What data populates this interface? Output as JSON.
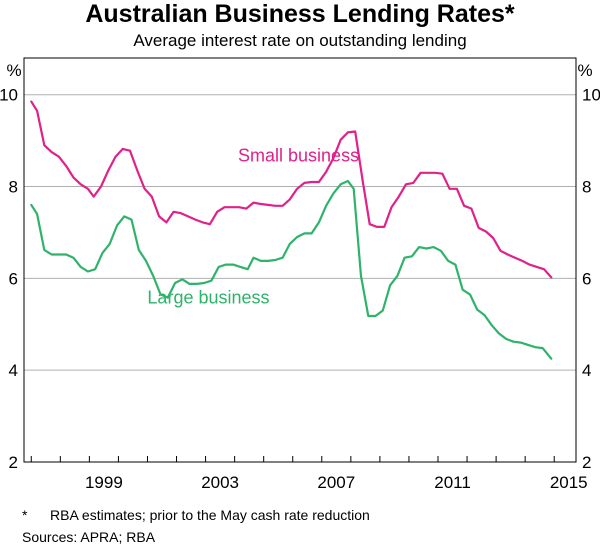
{
  "chart_data": {
    "type": "line",
    "title": "Australian Business Lending Rates*",
    "subtitle": "Average interest rate on outstanding lending",
    "unit_left": "%",
    "unit_right": "%",
    "ylim": [
      2,
      10.8
    ],
    "yticks": [
      2,
      4,
      6,
      8,
      10
    ],
    "xlim": [
      1996.75,
      2015.75
    ],
    "xticks": [
      1999,
      2003,
      2007,
      2011,
      2015
    ],
    "grid": true,
    "colors": {
      "small": "#e0218a",
      "large": "#2fb36b",
      "grid": "#b0b0b0"
    },
    "series": [
      {
        "name": "Small business",
        "color": "#e0218a",
        "label_at": [
          2006.2,
          8.55
        ],
        "points": [
          [
            1997.0,
            9.85
          ],
          [
            1997.2,
            9.65
          ],
          [
            1997.45,
            8.9
          ],
          [
            1997.7,
            8.75
          ],
          [
            1997.95,
            8.65
          ],
          [
            1998.2,
            8.45
          ],
          [
            1998.45,
            8.2
          ],
          [
            1998.7,
            8.05
          ],
          [
            1998.95,
            7.95
          ],
          [
            1999.15,
            7.78
          ],
          [
            1999.4,
            8.0
          ],
          [
            1999.65,
            8.35
          ],
          [
            1999.9,
            8.65
          ],
          [
            2000.15,
            8.82
          ],
          [
            2000.4,
            8.78
          ],
          [
            2000.65,
            8.35
          ],
          [
            2000.9,
            7.95
          ],
          [
            2001.15,
            7.78
          ],
          [
            2001.4,
            7.35
          ],
          [
            2001.65,
            7.22
          ],
          [
            2001.9,
            7.45
          ],
          [
            2002.15,
            7.42
          ],
          [
            2002.4,
            7.35
          ],
          [
            2002.65,
            7.28
          ],
          [
            2002.9,
            7.22
          ],
          [
            2003.15,
            7.18
          ],
          [
            2003.4,
            7.45
          ],
          [
            2003.65,
            7.55
          ],
          [
            2003.9,
            7.55
          ],
          [
            2004.15,
            7.55
          ],
          [
            2004.4,
            7.52
          ],
          [
            2004.65,
            7.65
          ],
          [
            2004.9,
            7.62
          ],
          [
            2005.15,
            7.6
          ],
          [
            2005.4,
            7.58
          ],
          [
            2005.65,
            7.58
          ],
          [
            2005.9,
            7.72
          ],
          [
            2006.15,
            7.95
          ],
          [
            2006.4,
            8.08
          ],
          [
            2006.65,
            8.1
          ],
          [
            2006.9,
            8.1
          ],
          [
            2007.15,
            8.32
          ],
          [
            2007.4,
            8.62
          ],
          [
            2007.65,
            9.02
          ],
          [
            2007.9,
            9.18
          ],
          [
            2008.15,
            9.2
          ],
          [
            2008.4,
            8.15
          ],
          [
            2008.65,
            7.18
          ],
          [
            2008.9,
            7.12
          ],
          [
            2009.15,
            7.12
          ],
          [
            2009.4,
            7.55
          ],
          [
            2009.65,
            7.78
          ],
          [
            2009.9,
            8.05
          ],
          [
            2010.15,
            8.08
          ],
          [
            2010.4,
            8.3
          ],
          [
            2010.65,
            8.3
          ],
          [
            2010.9,
            8.3
          ],
          [
            2011.15,
            8.28
          ],
          [
            2011.4,
            7.95
          ],
          [
            2011.65,
            7.95
          ],
          [
            2011.9,
            7.58
          ],
          [
            2012.15,
            7.52
          ],
          [
            2012.4,
            7.1
          ],
          [
            2012.65,
            7.02
          ],
          [
            2012.9,
            6.88
          ],
          [
            2013.15,
            6.6
          ],
          [
            2013.4,
            6.52
          ],
          [
            2013.65,
            6.45
          ],
          [
            2013.9,
            6.38
          ],
          [
            2014.15,
            6.3
          ],
          [
            2014.4,
            6.25
          ],
          [
            2014.65,
            6.2
          ],
          [
            2014.9,
            6.02
          ]
        ]
      },
      {
        "name": "Large business",
        "color": "#2fb36b",
        "label_at": [
          2003.1,
          5.45
        ],
        "points": [
          [
            1997.0,
            7.6
          ],
          [
            1997.2,
            7.4
          ],
          [
            1997.45,
            6.62
          ],
          [
            1997.7,
            6.52
          ],
          [
            1997.95,
            6.52
          ],
          [
            1998.2,
            6.52
          ],
          [
            1998.45,
            6.45
          ],
          [
            1998.7,
            6.25
          ],
          [
            1998.95,
            6.15
          ],
          [
            1999.2,
            6.2
          ],
          [
            1999.45,
            6.55
          ],
          [
            1999.7,
            6.75
          ],
          [
            1999.95,
            7.15
          ],
          [
            2000.2,
            7.35
          ],
          [
            2000.45,
            7.28
          ],
          [
            2000.7,
            6.62
          ],
          [
            2000.95,
            6.38
          ],
          [
            2001.2,
            6.05
          ],
          [
            2001.45,
            5.65
          ],
          [
            2001.7,
            5.58
          ],
          [
            2001.95,
            5.9
          ],
          [
            2002.2,
            5.98
          ],
          [
            2002.45,
            5.88
          ],
          [
            2002.7,
            5.88
          ],
          [
            2002.95,
            5.9
          ],
          [
            2003.2,
            5.95
          ],
          [
            2003.45,
            6.25
          ],
          [
            2003.7,
            6.3
          ],
          [
            2003.95,
            6.3
          ],
          [
            2004.2,
            6.25
          ],
          [
            2004.45,
            6.2
          ],
          [
            2004.65,
            6.45
          ],
          [
            2004.9,
            6.38
          ],
          [
            2005.15,
            6.38
          ],
          [
            2005.4,
            6.4
          ],
          [
            2005.65,
            6.45
          ],
          [
            2005.9,
            6.75
          ],
          [
            2006.15,
            6.9
          ],
          [
            2006.4,
            6.98
          ],
          [
            2006.65,
            6.98
          ],
          [
            2006.9,
            7.22
          ],
          [
            2007.15,
            7.58
          ],
          [
            2007.4,
            7.85
          ],
          [
            2007.65,
            8.05
          ],
          [
            2007.9,
            8.12
          ],
          [
            2008.1,
            7.95
          ],
          [
            2008.35,
            6.05
          ],
          [
            2008.6,
            5.18
          ],
          [
            2008.85,
            5.18
          ],
          [
            2009.1,
            5.3
          ],
          [
            2009.35,
            5.85
          ],
          [
            2009.6,
            6.05
          ],
          [
            2009.85,
            6.45
          ],
          [
            2010.1,
            6.48
          ],
          [
            2010.35,
            6.68
          ],
          [
            2010.6,
            6.65
          ],
          [
            2010.85,
            6.68
          ],
          [
            2011.1,
            6.6
          ],
          [
            2011.35,
            6.38
          ],
          [
            2011.6,
            6.3
          ],
          [
            2011.85,
            5.75
          ],
          [
            2012.1,
            5.65
          ],
          [
            2012.35,
            5.32
          ],
          [
            2012.6,
            5.2
          ],
          [
            2012.85,
            4.98
          ],
          [
            2013.1,
            4.8
          ],
          [
            2013.35,
            4.68
          ],
          [
            2013.6,
            4.62
          ],
          [
            2013.85,
            4.6
          ],
          [
            2014.1,
            4.55
          ],
          [
            2014.35,
            4.5
          ],
          [
            2014.6,
            4.48
          ],
          [
            2014.9,
            4.25
          ]
        ]
      }
    ]
  },
  "footnote": {
    "marker": "*",
    "text": "RBA estimates; prior to the May cash rate reduction"
  },
  "sources": "Sources:   APRA; RBA"
}
